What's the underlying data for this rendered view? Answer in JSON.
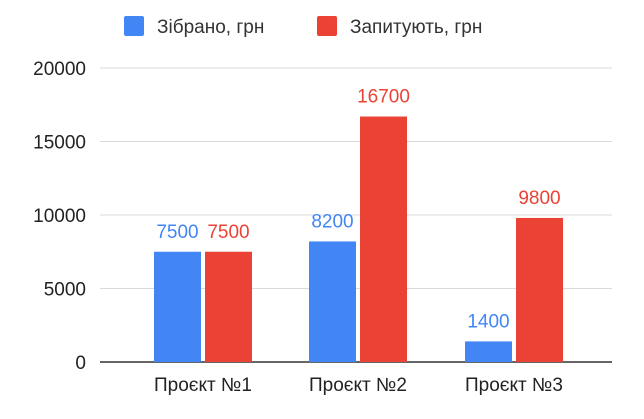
{
  "chart_data": {
    "type": "bar",
    "title": "",
    "xlabel": "",
    "ylabel": "",
    "categories": [
      "Проєкт №1",
      "Проєкт №2",
      "Проєкт №3"
    ],
    "series": [
      {
        "name": "Зібрано, грн",
        "color": "#4285f4",
        "values": [
          7500,
          8200,
          1400
        ]
      },
      {
        "name": "Запитують, грн",
        "color": "#ea4335",
        "values": [
          7500,
          16700,
          9800
        ]
      }
    ],
    "ylim": [
      0,
      20000
    ],
    "yticks": [
      0,
      5000,
      10000,
      15000,
      20000
    ],
    "grid": true,
    "legend_position": "top",
    "data_labels": true
  }
}
